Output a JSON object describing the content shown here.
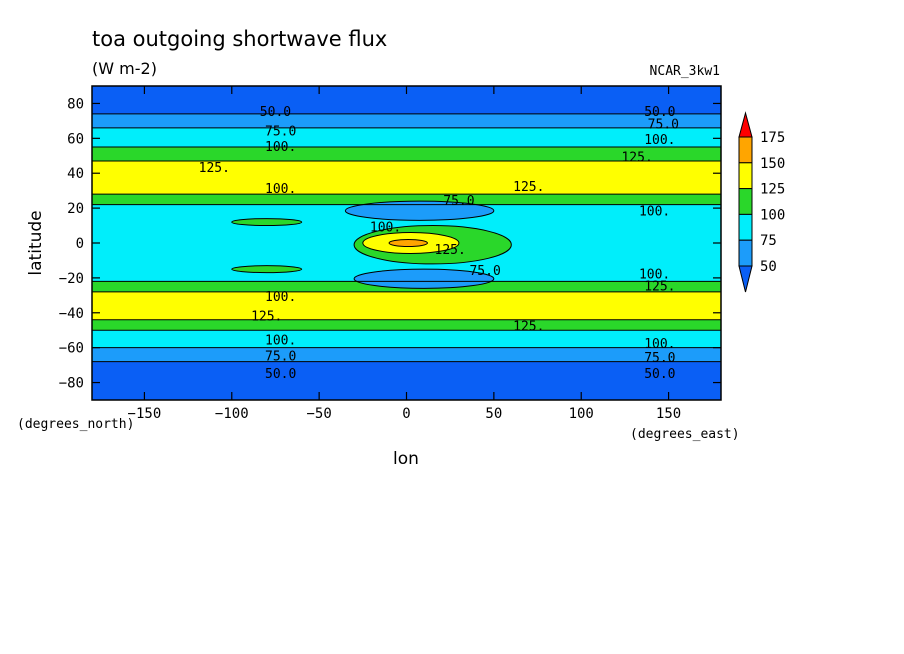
{
  "chart_data": {
    "type": "heatmap",
    "title": "toa outgoing shortwave flux",
    "units": "(W m-2)",
    "model": "NCAR_3kw1",
    "xlabel": "lon",
    "ylabel": "latitude",
    "x_units": "(degrees_east)",
    "y_units": "(degrees_north)",
    "xlim": [
      -180,
      180
    ],
    "ylim": [
      -90,
      90
    ],
    "x_ticks": [
      -150,
      -100,
      -50,
      0,
      50,
      100,
      150
    ],
    "y_ticks": [
      80,
      60,
      40,
      20,
      0,
      -20,
      -40,
      -60,
      -80
    ],
    "x_tick_labels": [
      "−150",
      "−100",
      "−50",
      "0",
      "50",
      "100",
      "150"
    ],
    "y_tick_labels": [
      "80",
      "60",
      "40",
      "20",
      "0",
      "−20",
      "−40",
      "−60",
      "−80"
    ],
    "colorbar": {
      "levels": [
        50,
        75,
        100,
        125,
        150,
        175
      ],
      "labels": [
        "50",
        "75",
        "100",
        "125",
        "150",
        "175"
      ],
      "colors": [
        "#0a5ff5",
        "#1c9cfa",
        "#00eefb",
        "#2ad72a",
        "#ffff00",
        "#ffa500",
        "#ff0000"
      ]
    },
    "zonal_bands": [
      {
        "lat": [
          -90,
          -68
        ],
        "value": 40
      },
      {
        "lat": [
          -68,
          -60
        ],
        "value": 65
      },
      {
        "lat": [
          -60,
          -50
        ],
        "value": 90
      },
      {
        "lat": [
          -50,
          -44
        ],
        "value": 115
      },
      {
        "lat": [
          -44,
          -28
        ],
        "value": 130
      },
      {
        "lat": [
          -28,
          -22
        ],
        "value": 110
      },
      {
        "lat": [
          -22,
          22
        ],
        "value": 90
      },
      {
        "lat": [
          22,
          28
        ],
        "value": 110
      },
      {
        "lat": [
          28,
          47
        ],
        "value": 130
      },
      {
        "lat": [
          47,
          55
        ],
        "value": 115
      },
      {
        "lat": [
          55,
          66
        ],
        "value": 90
      },
      {
        "lat": [
          66,
          74
        ],
        "value": 65
      },
      {
        "lat": [
          74,
          90
        ],
        "value": 40
      }
    ],
    "regions": [
      {
        "lon": [
          -35,
          50
        ],
        "lat": [
          13,
          24
        ],
        "value": 65
      },
      {
        "lon": [
          -30,
          50
        ],
        "lat": [
          -26,
          -15
        ],
        "value": 65
      },
      {
        "lon": [
          -100,
          -60
        ],
        "lat": [
          10,
          14
        ],
        "value": 110
      },
      {
        "lon": [
          -100,
          -60
        ],
        "lat": [
          -17,
          -13
        ],
        "value": 110
      },
      {
        "lon": [
          -30,
          60
        ],
        "lat": [
          -12,
          10
        ],
        "value": 110
      },
      {
        "lon": [
          -25,
          30
        ],
        "lat": [
          -6,
          6
        ],
        "value": 130
      },
      {
        "lon": [
          -10,
          12
        ],
        "lat": [
          -2,
          2
        ],
        "value": 155
      }
    ],
    "contour_labels": [
      {
        "text": "50.0",
        "lon": -75,
        "lat": 75
      },
      {
        "text": "50.0",
        "lon": 145,
        "lat": 75
      },
      {
        "text": "75.0",
        "lon": -72,
        "lat": 64
      },
      {
        "text": "75.0",
        "lon": 147,
        "lat": 68
      },
      {
        "text": "100.",
        "lon": -72,
        "lat": 55
      },
      {
        "text": "100.",
        "lon": 145,
        "lat": 59
      },
      {
        "text": "125.",
        "lon": -110,
        "lat": 43
      },
      {
        "text": "125.",
        "lon": 132,
        "lat": 49
      },
      {
        "text": "125.",
        "lon": 70,
        "lat": 32
      },
      {
        "text": "100.",
        "lon": -72,
        "lat": 31
      },
      {
        "text": "75.0",
        "lon": 30,
        "lat": 24
      },
      {
        "text": "100.",
        "lon": 142,
        "lat": 18
      },
      {
        "text": "100.",
        "lon": -12,
        "lat": 9
      },
      {
        "text": "125.",
        "lon": 25,
        "lat": -4
      },
      {
        "text": "75.0",
        "lon": 45,
        "lat": -16
      },
      {
        "text": "100.",
        "lon": 142,
        "lat": -18
      },
      {
        "text": "125.",
        "lon": 145,
        "lat": -25
      },
      {
        "text": "100.",
        "lon": -72,
        "lat": -31
      },
      {
        "text": "125.",
        "lon": -80,
        "lat": -42
      },
      {
        "text": "125.",
        "lon": 70,
        "lat": -48
      },
      {
        "text": "100.",
        "lon": -72,
        "lat": -56
      },
      {
        "text": "100.",
        "lon": 145,
        "lat": -58
      },
      {
        "text": "75.0",
        "lon": -72,
        "lat": -65
      },
      {
        "text": "75.0",
        "lon": 145,
        "lat": -66
      },
      {
        "text": "50.0",
        "lon": -72,
        "lat": -75
      },
      {
        "text": "50.0",
        "lon": 145,
        "lat": -75
      }
    ]
  }
}
